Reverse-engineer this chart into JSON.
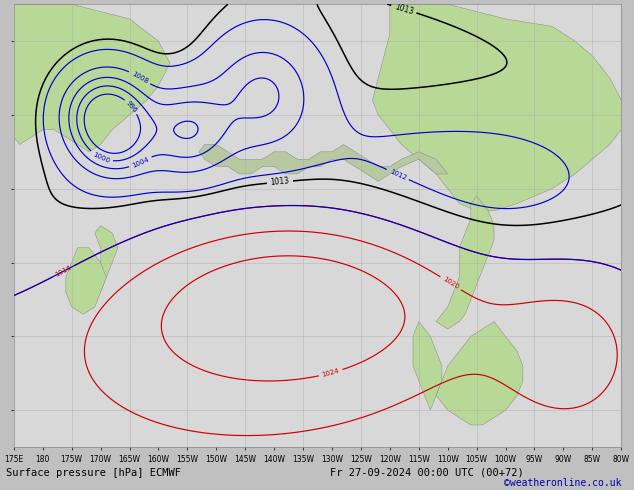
{
  "title": "Surface pressure [hPa] ECMWF",
  "subtitle": "Fr 27-09-2024 00:00 UTC (00+72)",
  "credit": "©weatheronline.co.uk",
  "figsize": [
    6.34,
    4.9
  ],
  "dpi": 100,
  "ocean_color": "#d8d8d8",
  "land_color_north": "#b8d898",
  "land_color_south": "#c8e8a8",
  "grid_color": "#aaaaaa",
  "grid_alpha": 0.7,
  "blue_color": "#0000cc",
  "red_color": "#cc0000",
  "black_color": "#000000",
  "title_fontsize": 7.5,
  "credit_fontsize": 7,
  "tick_fontsize": 5.5,
  "lon_min": 175,
  "lon_max": 280,
  "lat_min": 15,
  "lat_max": 75
}
